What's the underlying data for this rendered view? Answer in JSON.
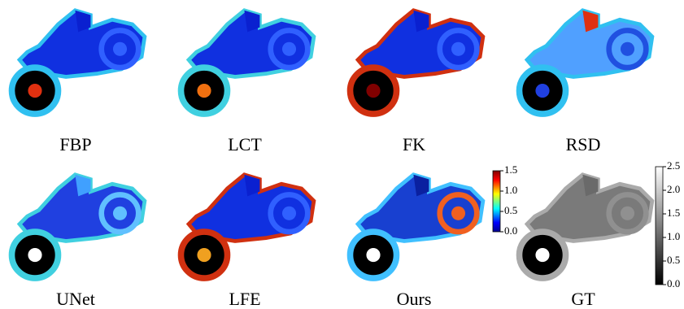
{
  "panels": [
    {
      "label": "FBP"
    },
    {
      "label": "LCT"
    },
    {
      "label": "FK"
    },
    {
      "label": "RSD"
    },
    {
      "label": "UNet"
    },
    {
      "label": "LFE"
    },
    {
      "label": "Ours"
    },
    {
      "label": "GT"
    }
  ],
  "colorbars": [
    {
      "colormap": "jet",
      "range": [
        0,
        1.5
      ],
      "ticks": [
        {
          "value": 0,
          "label": "0.0"
        },
        {
          "value": 0.5,
          "label": "0.5"
        },
        {
          "value": 1,
          "label": "1.0"
        },
        {
          "value": 1.5,
          "label": "1.5"
        }
      ]
    },
    {
      "colormap": "gray",
      "range": [
        0,
        2.5
      ],
      "ticks": [
        {
          "value": 0,
          "label": "0.0"
        },
        {
          "value": 0.5,
          "label": "0.5"
        },
        {
          "value": 1,
          "label": "1.0"
        },
        {
          "value": 1.5,
          "label": "1.5"
        },
        {
          "value": 2,
          "label": "2.0"
        },
        {
          "value": 2.5,
          "label": "2.5"
        }
      ]
    }
  ]
}
